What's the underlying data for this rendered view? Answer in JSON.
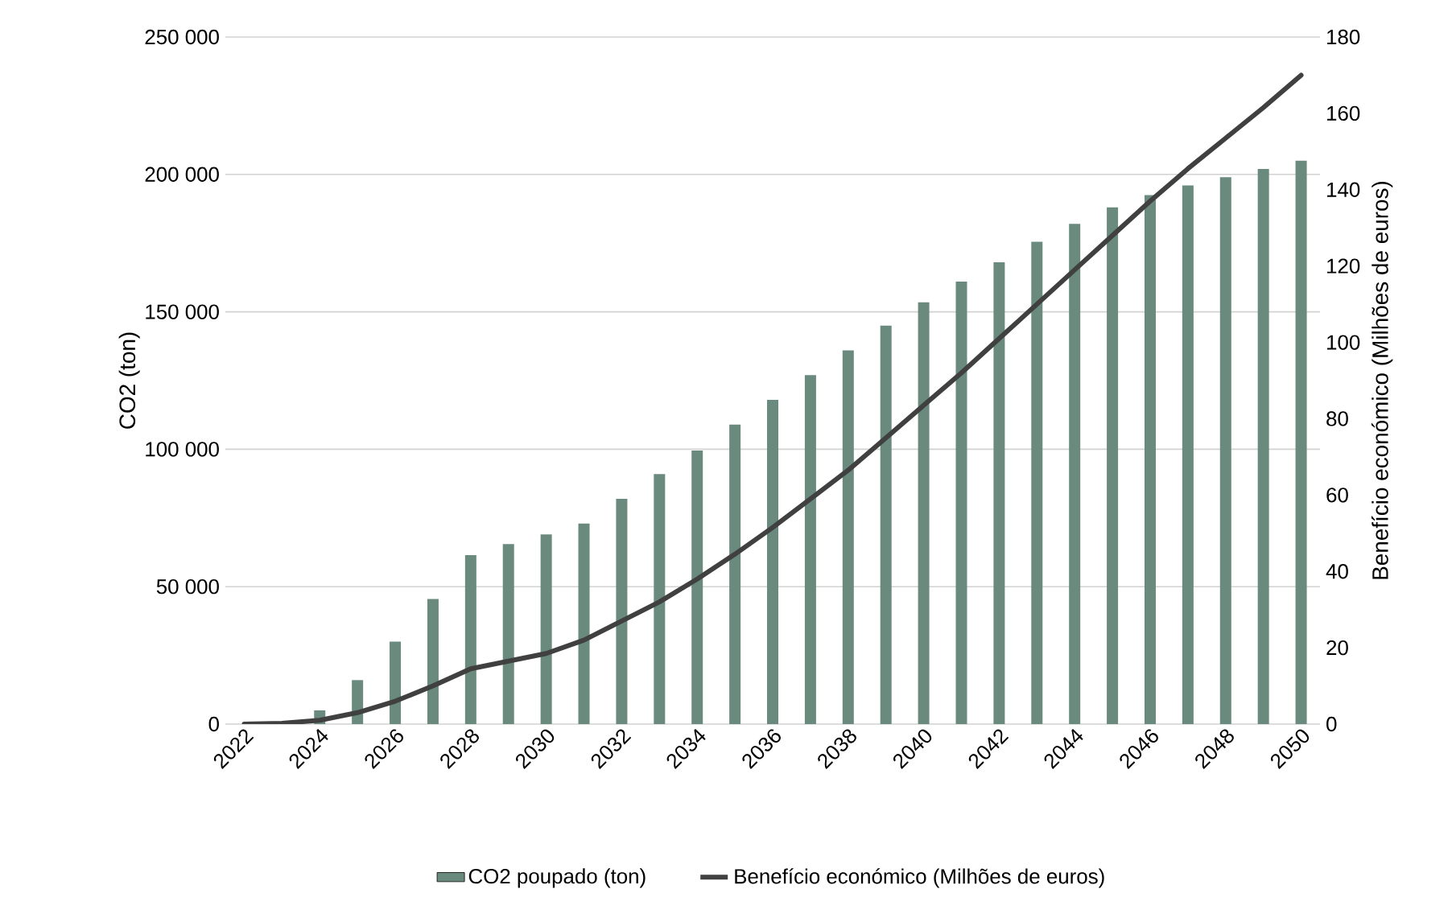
{
  "chart_data": {
    "type": "bar",
    "categories": [
      "2022",
      null,
      "2024",
      null,
      "2026",
      null,
      "2028",
      null,
      "2030",
      null,
      "2032",
      null,
      "2034",
      null,
      "2036",
      null,
      "2038",
      null,
      "2040",
      null,
      "2042",
      null,
      "2044",
      null,
      "2046",
      null,
      "2048",
      null,
      "2050"
    ],
    "series": [
      {
        "name": "CO2 poupado (ton)",
        "color": "#6a8a7e",
        "values": [
          0,
          0,
          5000,
          16000,
          30000,
          45500,
          61500,
          65500,
          69000,
          73000,
          82000,
          91000,
          99500,
          109000,
          118000,
          127000,
          136000,
          145000,
          153500,
          161000,
          168000,
          175500,
          182000,
          188000,
          192500,
          196000,
          199000,
          202000,
          205000
        ]
      },
      {
        "name": "Benefício económico  (Milhões de euros)",
        "color": "#404040",
        "type": "line",
        "axis": "y2",
        "values": [
          0,
          0.2,
          1,
          3,
          6,
          10,
          14.5,
          16.5,
          18.5,
          22,
          27,
          32,
          38,
          44.5,
          51.5,
          59,
          66.5,
          75,
          83.5,
          92,
          101,
          110,
          119,
          128,
          137,
          145.5,
          153.5,
          161.5,
          170
        ]
      }
    ],
    "ylabel": "CO2 (ton)",
    "y2label": "Benefício económico  (Milhões de euros)",
    "ylim": [
      0,
      250000
    ],
    "yticks": [
      0,
      {
        "value": 50000,
        "label": "50 000"
      },
      {
        "value": 100000,
        "label": "100 000"
      },
      {
        "value": 150000,
        "label": "150 000"
      },
      {
        "value": 200000,
        "label": "200 000"
      },
      {
        "value": 250000,
        "label": "250 000"
      }
    ],
    "y2lim": [
      0,
      180
    ],
    "y2ticks": [
      0,
      20,
      40,
      60,
      80,
      100,
      120,
      140,
      160,
      180
    ],
    "grid": "y",
    "legend": "bottom"
  }
}
